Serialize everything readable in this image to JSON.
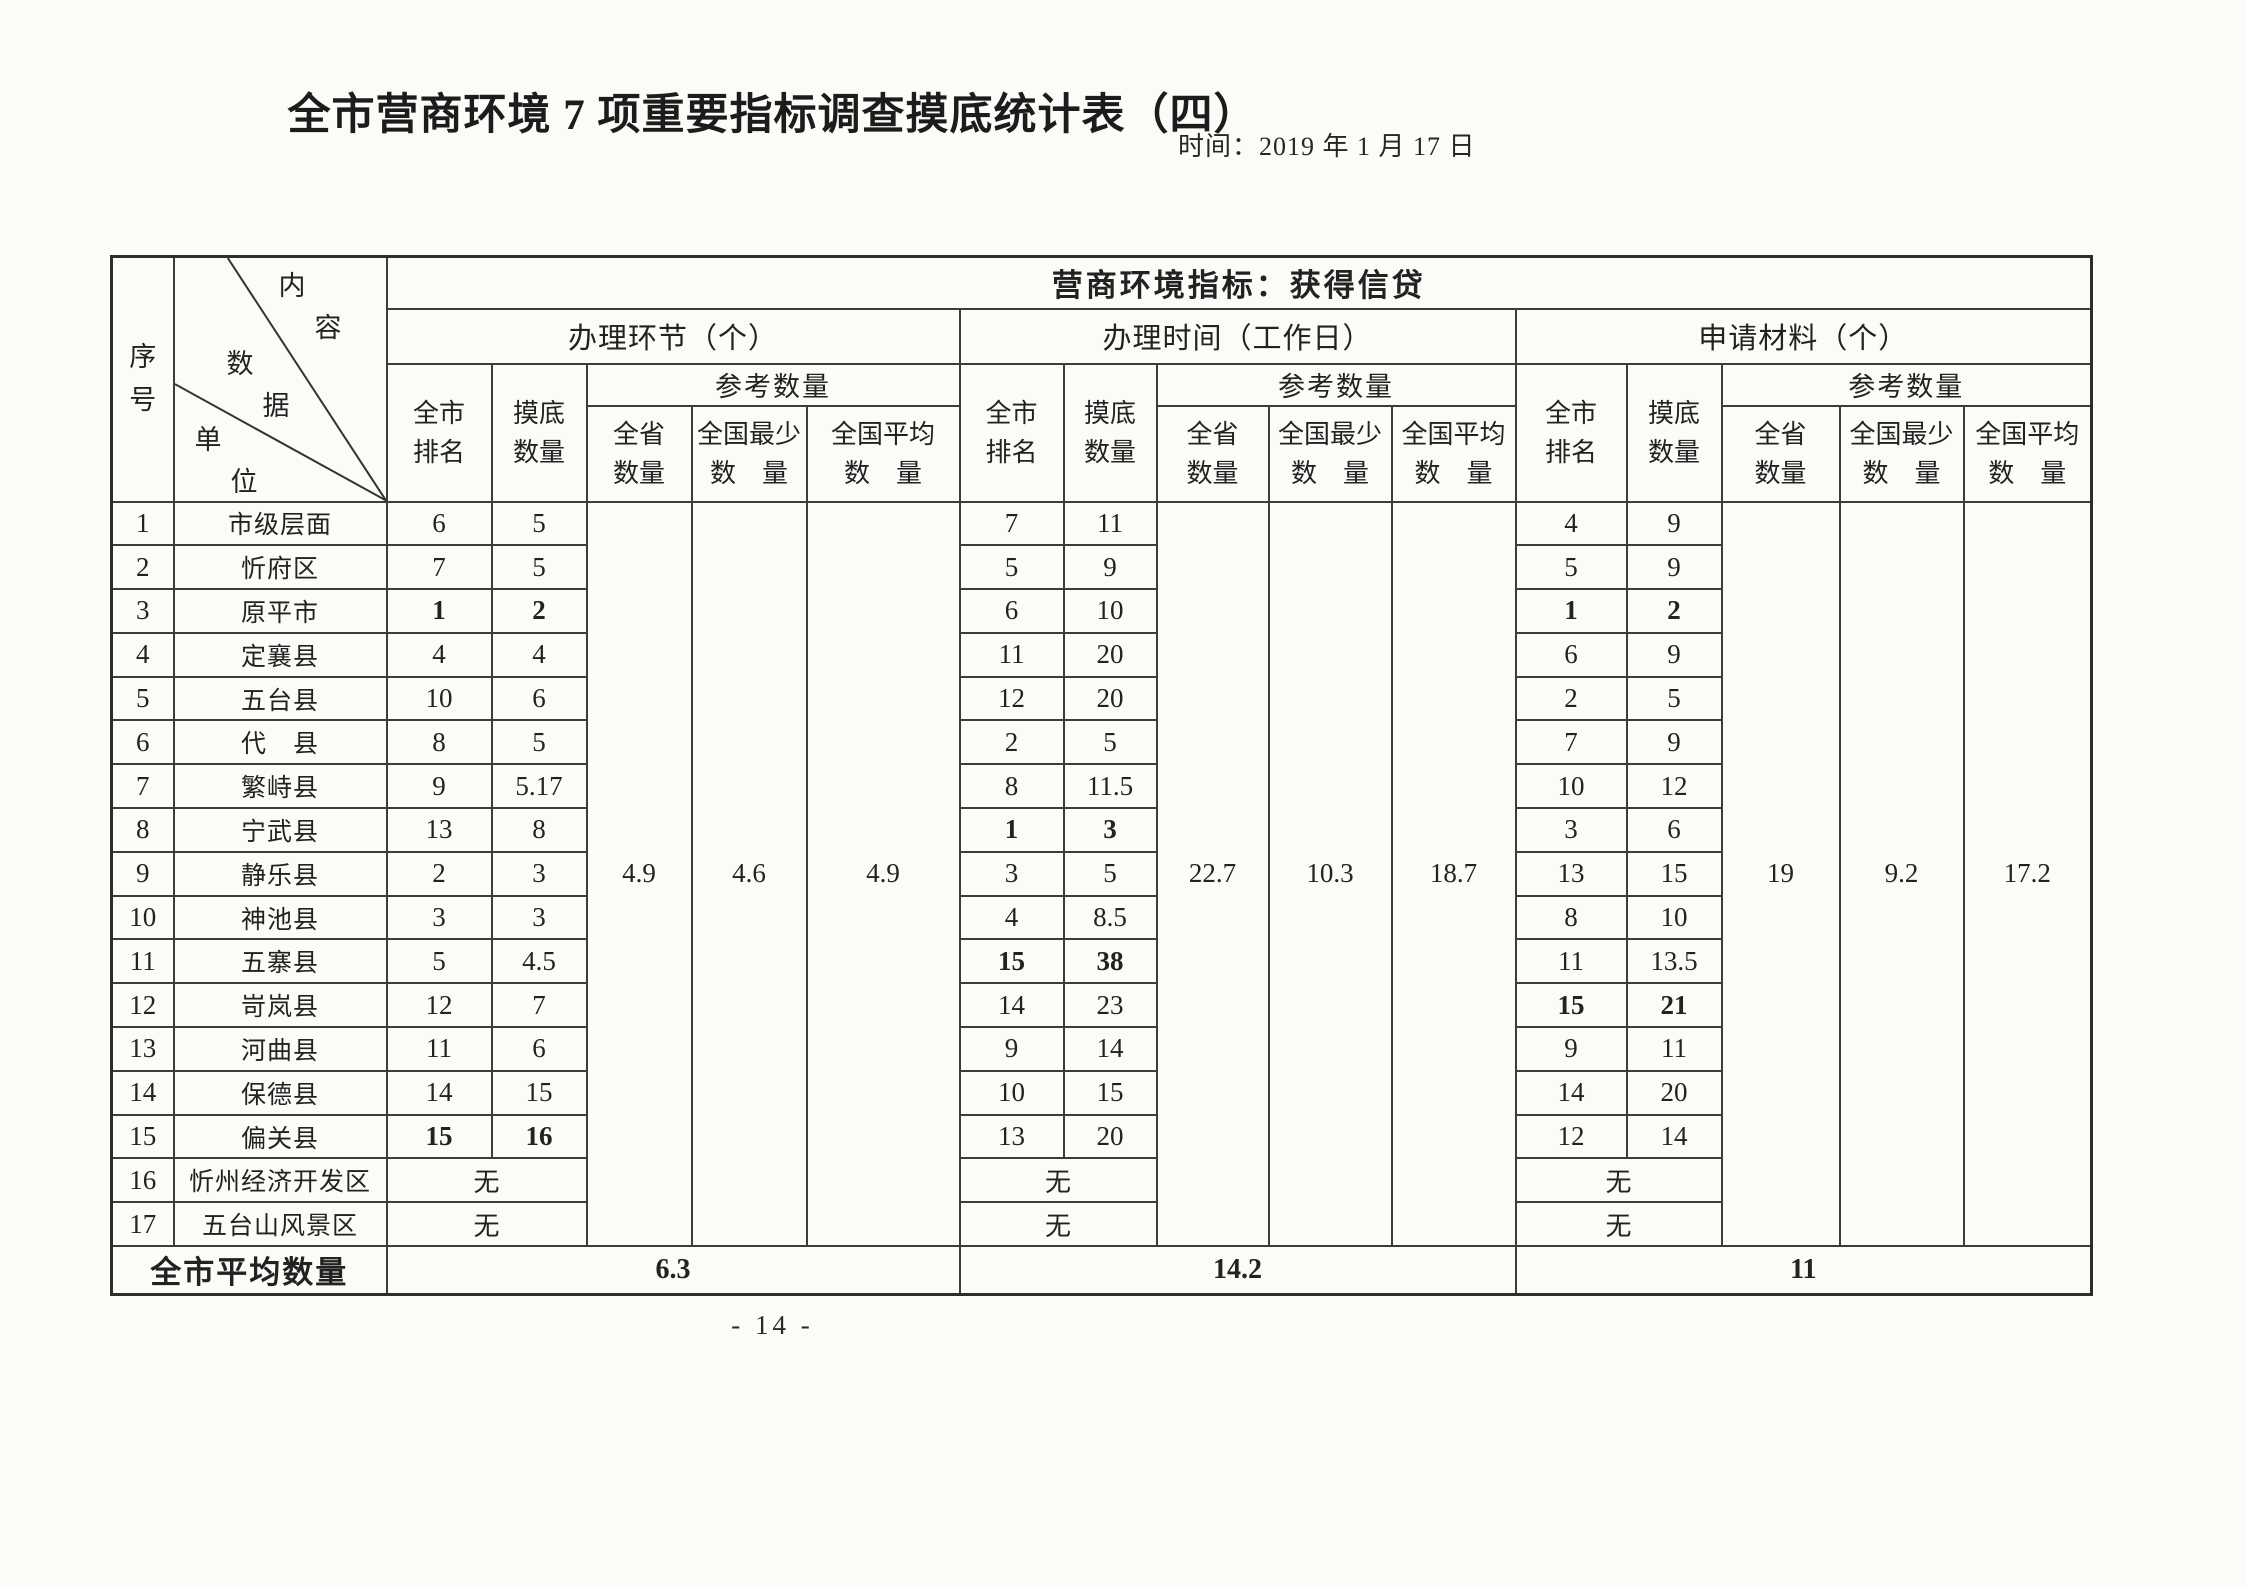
{
  "page": {
    "title": "全市营商环境 7 项重要指标调查摸底统计表（四）",
    "date": "时间：2019 年 1 月 17 日",
    "page_number": "- 14 -"
  },
  "table": {
    "indicator": "营商环境指标：获得信贷",
    "serial_header": "序号",
    "corner": {
      "content": "内容",
      "data": "数据",
      "unit": "单位"
    },
    "sub": {
      "rank": "全市\n排名",
      "qty": "摸底\n数量",
      "ref": "参考数量",
      "ref_cols": [
        "全省\n数量",
        "全国最少\n数　量",
        "全国平均\n数　量"
      ]
    },
    "groups": [
      {
        "label": "办理环节（个）",
        "refs": [
          "4.9",
          "4.6",
          "4.9"
        ],
        "average": "6.3"
      },
      {
        "label": "办理时间（工作日）",
        "refs": [
          "22.7",
          "10.3",
          "18.7"
        ],
        "average": "14.2"
      },
      {
        "label": "申请材料（个）",
        "refs": [
          "19",
          "9.2",
          "17.2"
        ],
        "average": "11"
      }
    ],
    "average_label": "全市平均数量",
    "none_text": "无",
    "rows": [
      {
        "no": "1",
        "unit": "市级层面",
        "g1": [
          "6",
          "5"
        ],
        "g2": [
          "7",
          "11"
        ],
        "g3": [
          "4",
          "9"
        ]
      },
      {
        "no": "2",
        "unit": "忻府区",
        "g1": [
          "7",
          "5"
        ],
        "g2": [
          "5",
          "9"
        ],
        "g3": [
          "5",
          "9"
        ]
      },
      {
        "no": "3",
        "unit": "原平市",
        "g1": [
          "1",
          "2"
        ],
        "g2": [
          "6",
          "10"
        ],
        "g3": [
          "1",
          "2"
        ],
        "bold": [
          "g1",
          "g3"
        ]
      },
      {
        "no": "4",
        "unit": "定襄县",
        "g1": [
          "4",
          "4"
        ],
        "g2": [
          "11",
          "20"
        ],
        "g3": [
          "6",
          "9"
        ]
      },
      {
        "no": "5",
        "unit": "五台县",
        "g1": [
          "10",
          "6"
        ],
        "g2": [
          "12",
          "20"
        ],
        "g3": [
          "2",
          "5"
        ]
      },
      {
        "no": "6",
        "unit": "代　县",
        "g1": [
          "8",
          "5"
        ],
        "g2": [
          "2",
          "5"
        ],
        "g3": [
          "7",
          "9"
        ]
      },
      {
        "no": "7",
        "unit": "繁峙县",
        "g1": [
          "9",
          "5.17"
        ],
        "g2": [
          "8",
          "11.5"
        ],
        "g3": [
          "10",
          "12"
        ]
      },
      {
        "no": "8",
        "unit": "宁武县",
        "g1": [
          "13",
          "8"
        ],
        "g2": [
          "1",
          "3"
        ],
        "g3": [
          "3",
          "6"
        ],
        "bold": [
          "g2"
        ]
      },
      {
        "no": "9",
        "unit": "静乐县",
        "g1": [
          "2",
          "3"
        ],
        "g2": [
          "3",
          "5"
        ],
        "g3": [
          "13",
          "15"
        ]
      },
      {
        "no": "10",
        "unit": "神池县",
        "g1": [
          "3",
          "3"
        ],
        "g2": [
          "4",
          "8.5"
        ],
        "g3": [
          "8",
          "10"
        ]
      },
      {
        "no": "11",
        "unit": "五寨县",
        "g1": [
          "5",
          "4.5"
        ],
        "g2": [
          "15",
          "38"
        ],
        "g3": [
          "11",
          "13.5"
        ],
        "bold": [
          "g2"
        ]
      },
      {
        "no": "12",
        "unit": "岢岚县",
        "g1": [
          "12",
          "7"
        ],
        "g2": [
          "14",
          "23"
        ],
        "g3": [
          "15",
          "21"
        ],
        "bold": [
          "g3"
        ]
      },
      {
        "no": "13",
        "unit": "河曲县",
        "g1": [
          "11",
          "6"
        ],
        "g2": [
          "9",
          "14"
        ],
        "g3": [
          "9",
          "11"
        ]
      },
      {
        "no": "14",
        "unit": "保德县",
        "g1": [
          "14",
          "15"
        ],
        "g2": [
          "10",
          "15"
        ],
        "g3": [
          "14",
          "20"
        ]
      },
      {
        "no": "15",
        "unit": "偏关县",
        "g1": [
          "15",
          "16"
        ],
        "g2": [
          "13",
          "20"
        ],
        "g3": [
          "12",
          "14"
        ],
        "bold": [
          "g1"
        ]
      },
      {
        "no": "16",
        "unit": "忻州经济开发区",
        "g1": "无",
        "g2": "无",
        "g3": "无"
      },
      {
        "no": "17",
        "unit": "五台山风景区",
        "g1": "无",
        "g2": "无",
        "g3": "无"
      }
    ]
  }
}
